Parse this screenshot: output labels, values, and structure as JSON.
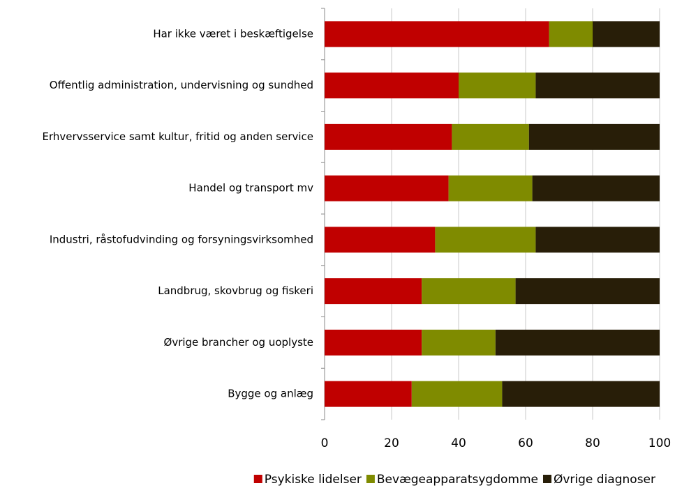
{
  "chart_data": {
    "type": "stacked_barh",
    "categories": [
      "Har ikke været i beskæftigelse",
      "Offentlig administration, undervisning og sundhed",
      "Erhvervsservice samt kultur, fritid og anden service",
      "Handel og transport mv",
      "Industri, råstofudvinding og forsyningsvirksomhed",
      "Landbrug, skovbrug og fiskeri",
      "Øvrige brancher og uoplyste",
      "Bygge og anlæg"
    ],
    "series": [
      {
        "name": "Psykiske lidelser",
        "color": "#c00000",
        "values": [
          67,
          40,
          38,
          37,
          33,
          29,
          29,
          26
        ]
      },
      {
        "name": "Bevægeapparatsygdomme",
        "color": "#7f8b00",
        "values": [
          13,
          23,
          23,
          25,
          30,
          28,
          22,
          27
        ]
      },
      {
        "name": "Øvrige diagnoser",
        "color": "#281e08",
        "values": [
          20,
          37,
          39,
          38,
          37,
          43,
          49,
          47
        ]
      }
    ],
    "xlim": [
      0,
      100
    ],
    "xticks": [
      0,
      20,
      40,
      60,
      80,
      100
    ],
    "grid": true,
    "legend": "bottom"
  }
}
